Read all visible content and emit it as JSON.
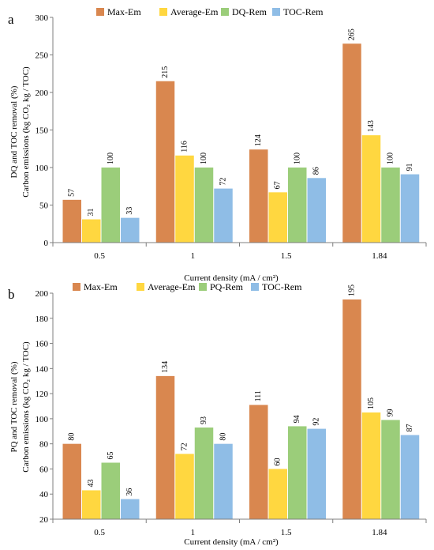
{
  "chart_data": [
    {
      "panel_label": "a",
      "type": "bar",
      "categories": [
        "0.5",
        "1",
        "1.5",
        "1.84"
      ],
      "series": [
        {
          "name": "Max-Em",
          "values": [
            57,
            215,
            124,
            265
          ],
          "color": "#d9874f"
        },
        {
          "name": "Average-Em",
          "values": [
            31,
            116,
            67,
            143
          ],
          "color": "#ffd740"
        },
        {
          "name": "DQ-Rem",
          "values": [
            100,
            100,
            100,
            100
          ],
          "color": "#9bcd7a"
        },
        {
          "name": "TOC-Rem",
          "values": [
            33,
            72,
            86,
            91
          ],
          "color": "#8fbde6"
        }
      ],
      "xlabel": "Current density (mA / cm²)",
      "ylabel_line1": "DQ and TOC removal (%)",
      "ylabel_line2": "Carbon emissions (kg CO₂ kg / TOC)",
      "ylim": [
        0,
        300
      ],
      "yticks": [
        "0",
        "50",
        "100",
        "150",
        "200",
        "250",
        "300"
      ],
      "grid": false,
      "legend_position": "top"
    },
    {
      "panel_label": "b",
      "type": "bar",
      "categories": [
        "0.5",
        "1",
        "1.5",
        "1.84"
      ],
      "series": [
        {
          "name": "Max-Em",
          "values": [
            80,
            134,
            111,
            195
          ],
          "color": "#d9874f"
        },
        {
          "name": "Average-Em",
          "values": [
            43,
            72,
            60,
            105
          ],
          "color": "#ffd740"
        },
        {
          "name": "PQ-Rem",
          "values": [
            65,
            93,
            94,
            99
          ],
          "color": "#9bcd7a"
        },
        {
          "name": "TOC-Rem",
          "values": [
            36,
            80,
            92,
            87
          ],
          "color": "#8fbde6"
        }
      ],
      "xlabel": "Current density (mA / cm²)",
      "ylabel_line1": "PQ and TOC removal (%)",
      "ylabel_line2": "Carbon emissions (kg CO₂ kg / TOC)",
      "ylim": [
        20,
        200
      ],
      "yticks": [
        "20",
        "40",
        "60",
        "80",
        "100",
        "120",
        "140",
        "160",
        "180",
        "200"
      ],
      "grid": false,
      "legend_position": "top"
    }
  ]
}
